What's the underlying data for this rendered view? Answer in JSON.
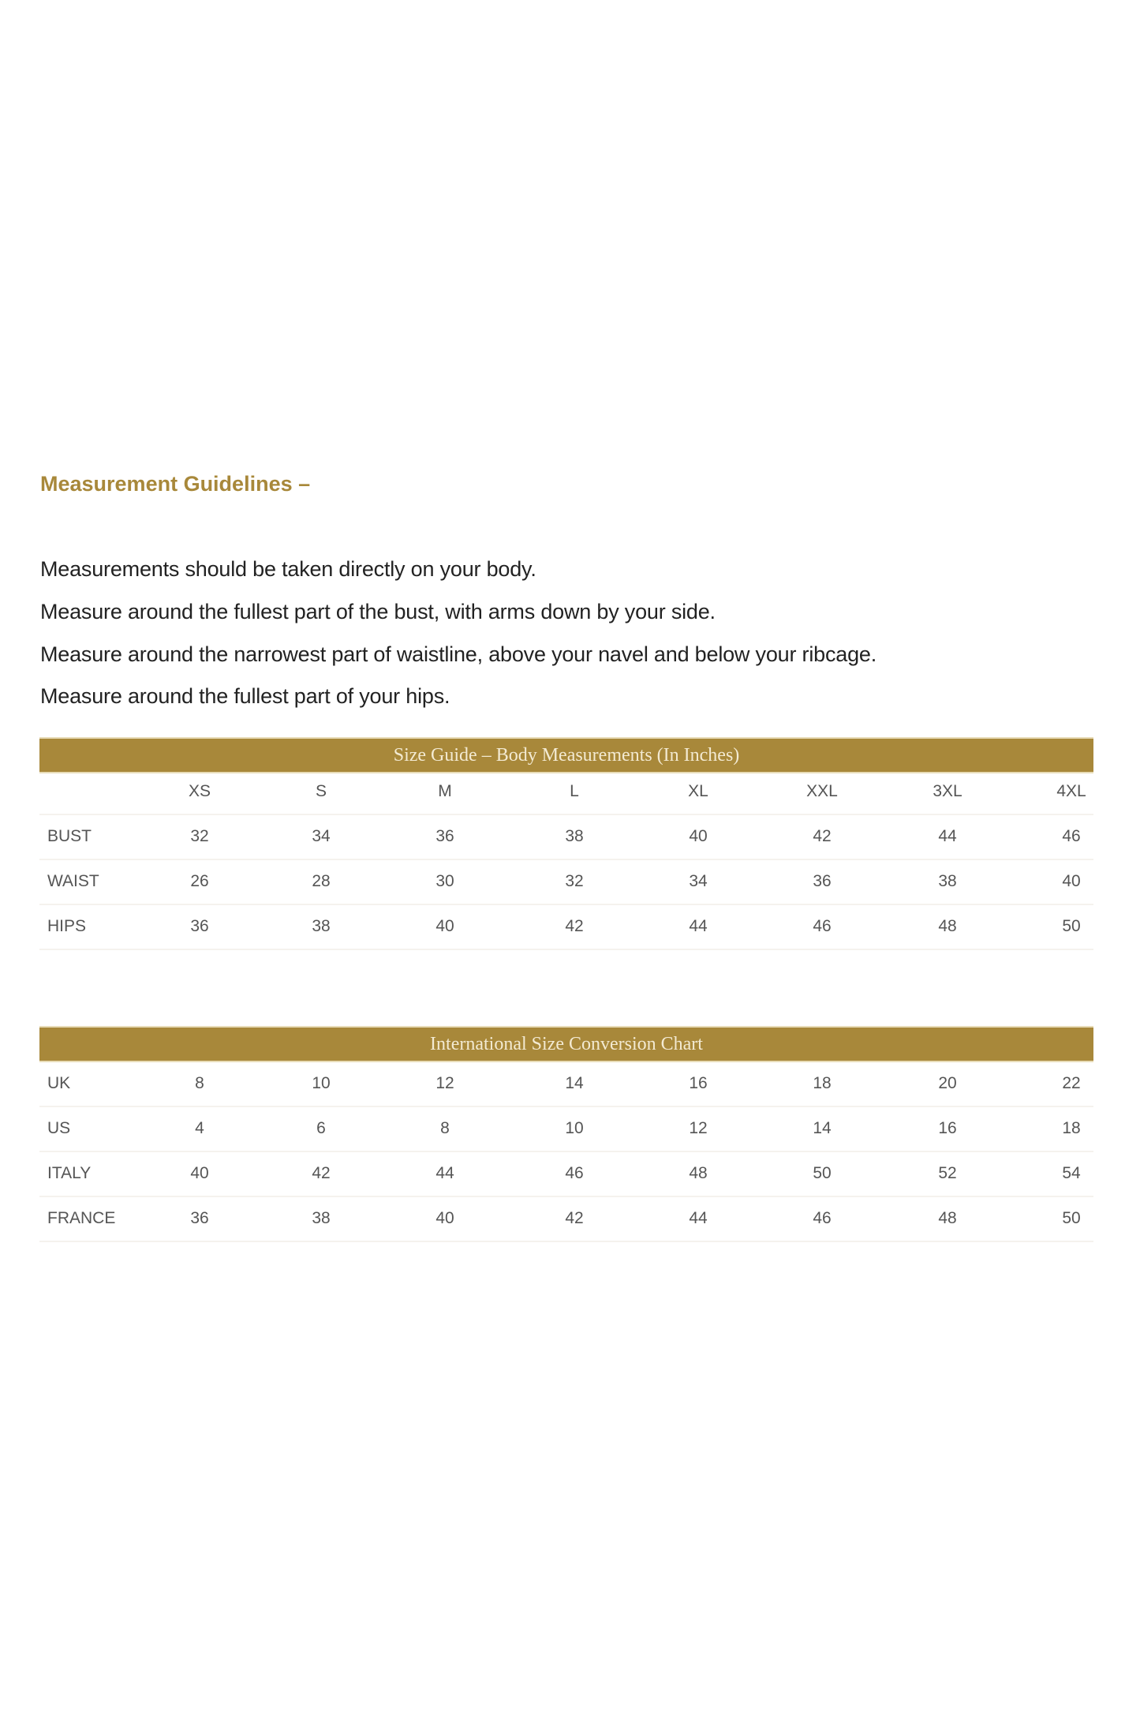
{
  "heading": "Measurement Guidelines –",
  "guidelines": [
    "Measurements should be taken directly on your body.",
    "Measure around the fullest part of the bust, with arms down by your side.",
    "Measure around the narrowest part of waistline, above your navel and below your ribcage.",
    "Measure around the fullest part of your hips."
  ],
  "accent_color": "#a8883a",
  "size_guide": {
    "title": "Size Guide – Body Measurements (In Inches)",
    "columns": [
      "XS",
      "S",
      "M",
      "L",
      "XL",
      "XXL",
      "3XL",
      "4XL"
    ],
    "rows": [
      {
        "label": "BUST",
        "values": [
          "32",
          "34",
          "36",
          "38",
          "40",
          "42",
          "44",
          "46"
        ]
      },
      {
        "label": "WAIST",
        "values": [
          "26",
          "28",
          "30",
          "32",
          "34",
          "36",
          "38",
          "40"
        ]
      },
      {
        "label": "HIPS",
        "values": [
          "36",
          "38",
          "40",
          "42",
          "44",
          "46",
          "48",
          "50"
        ]
      }
    ]
  },
  "conversion": {
    "title": "International Size Conversion Chart",
    "rows": [
      {
        "label": "UK",
        "values": [
          "8",
          "10",
          "12",
          "14",
          "16",
          "18",
          "20",
          "22"
        ]
      },
      {
        "label": "US",
        "values": [
          "4",
          "6",
          "8",
          "10",
          "12",
          "14",
          "16",
          "18"
        ]
      },
      {
        "label": "ITALY",
        "values": [
          "40",
          "42",
          "44",
          "46",
          "48",
          "50",
          "52",
          "54"
        ]
      },
      {
        "label": "FRANCE",
        "values": [
          "36",
          "38",
          "40",
          "42",
          "44",
          "46",
          "48",
          "50"
        ]
      }
    ]
  }
}
